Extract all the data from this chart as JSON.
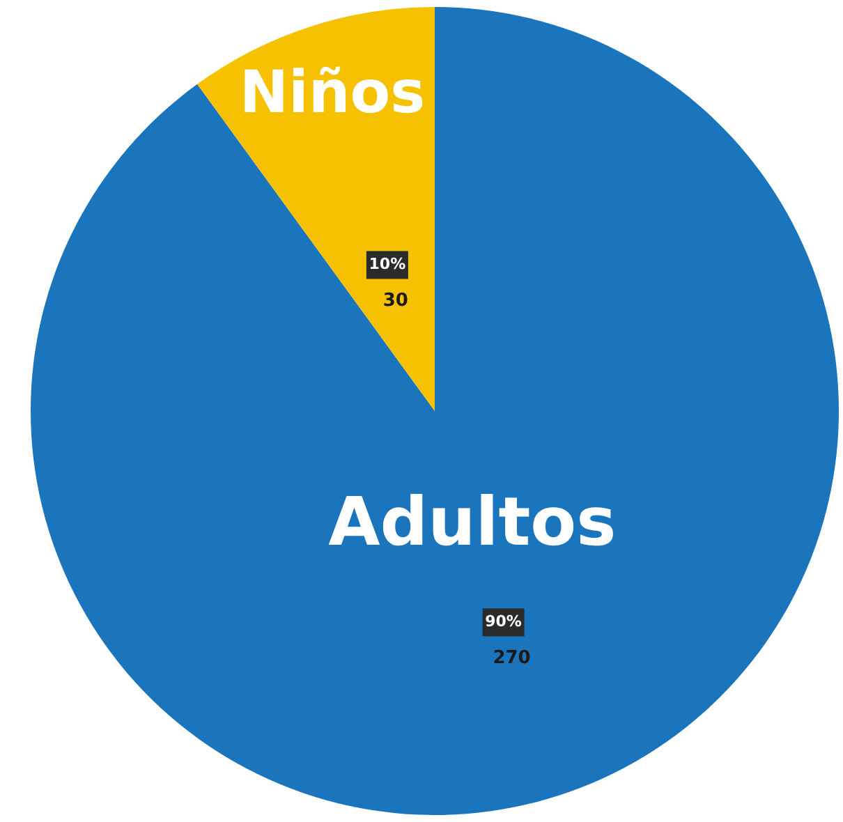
{
  "chart_data": {
    "type": "pie",
    "categories": [
      "Adultos",
      "Niños"
    ],
    "values": [
      270,
      30
    ],
    "colors": [
      "#1b75bc",
      "#f6c100"
    ],
    "value_labels": [
      "270",
      "30"
    ],
    "annotations": [
      "90%",
      "10%"
    ]
  }
}
